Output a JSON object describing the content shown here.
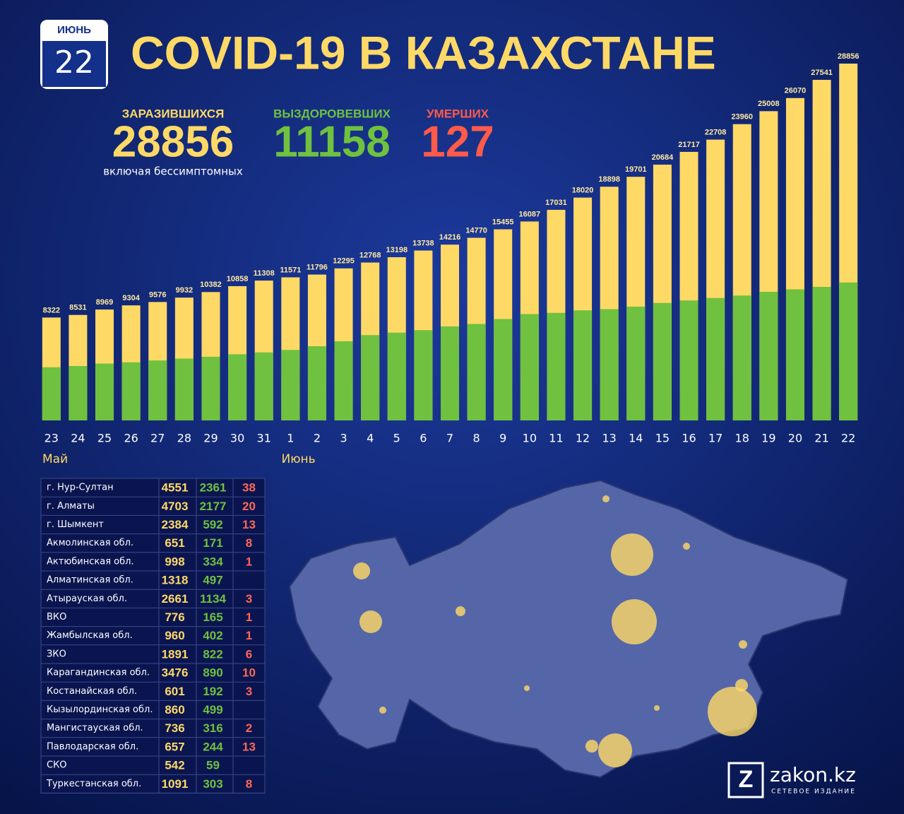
{
  "header": {
    "month": "ИЮНЬ",
    "day": "22",
    "title": "COVID-19 В КАЗАХСТАНЕ"
  },
  "stats": [
    {
      "label": "ЗАРАЗИВШИХСЯ",
      "value": 28856,
      "note": "включая бессимптомных",
      "color": "#ffd966"
    },
    {
      "label": "ВЫЗДОРОВЕВШИХ",
      "value": 11158,
      "color": "#6fc13f"
    },
    {
      "label": "УМЕРШИХ",
      "value": 127,
      "color": "#ff5a4a"
    }
  ],
  "chart_data": {
    "type": "bar",
    "categories": [
      "23",
      "24",
      "25",
      "26",
      "27",
      "28",
      "29",
      "30",
      "31",
      "1",
      "2",
      "3",
      "4",
      "5",
      "6",
      "7",
      "8",
      "9",
      "10",
      "11",
      "12",
      "13",
      "14",
      "15",
      "16",
      "17",
      "18",
      "19",
      "20",
      "21",
      "22"
    ],
    "months": [
      {
        "name": "Май",
        "start": "23"
      },
      {
        "name": "Июнь",
        "start": "1"
      }
    ],
    "series": [
      {
        "color": "#ffd966",
        "labeled": true,
        "values": [
          8322,
          8531,
          8969,
          9304,
          9576,
          9932,
          10382,
          10858,
          11308,
          11571,
          11796,
          12295,
          12768,
          13198,
          13738,
          14216,
          14770,
          15455,
          16087,
          17031,
          18020,
          18898,
          19701,
          20684,
          21717,
          22708,
          23960,
          25008,
          26070,
          27541,
          28856
        ]
      },
      {
        "color": "#6fc13f",
        "labeled": false,
        "values": [
          4300,
          4400,
          4600,
          4700,
          4850,
          5000,
          5150,
          5350,
          5500,
          5700,
          6000,
          6400,
          6900,
          7100,
          7300,
          7600,
          7800,
          8200,
          8600,
          8700,
          8900,
          9000,
          9200,
          9500,
          9700,
          9900,
          10100,
          10400,
          10600,
          10800,
          11158
        ]
      }
    ],
    "ylim": [
      0,
      28856
    ]
  },
  "table": {
    "rows": [
      [
        "г. Нур-Султан",
        4551,
        2361,
        38
      ],
      [
        "г. Алматы",
        4703,
        2177,
        20
      ],
      [
        "г. Шымкент",
        2384,
        592,
        13
      ],
      [
        "Акмолинская обл.",
        651,
        171,
        8
      ],
      [
        "Актюбинская обл.",
        998,
        334,
        1
      ],
      [
        "Алматинская обл.",
        1318,
        497,
        null
      ],
      [
        "Атырауская обл.",
        2661,
        1134,
        3
      ],
      [
        "ВКО",
        776,
        165,
        1
      ],
      [
        "Жамбылская обл.",
        960,
        402,
        1
      ],
      [
        "ЗКО",
        1891,
        822,
        6
      ],
      [
        "Карагандинская обл.",
        3476,
        890,
        10
      ],
      [
        "Костанайская обл.",
        601,
        192,
        3
      ],
      [
        "Кызылординская обл.",
        860,
        499,
        null
      ],
      [
        "Мангистауская обл.",
        736,
        316,
        2
      ],
      [
        "Павлодарская обл.",
        657,
        244,
        13
      ],
      [
        "СКО",
        542,
        59,
        null
      ],
      [
        "Туркестанская обл.",
        1091,
        303,
        8
      ]
    ]
  },
  "logo": {
    "name": "zakon.kz",
    "tagline": "СЕТЕВОЕ ИЗДАНИЕ"
  }
}
